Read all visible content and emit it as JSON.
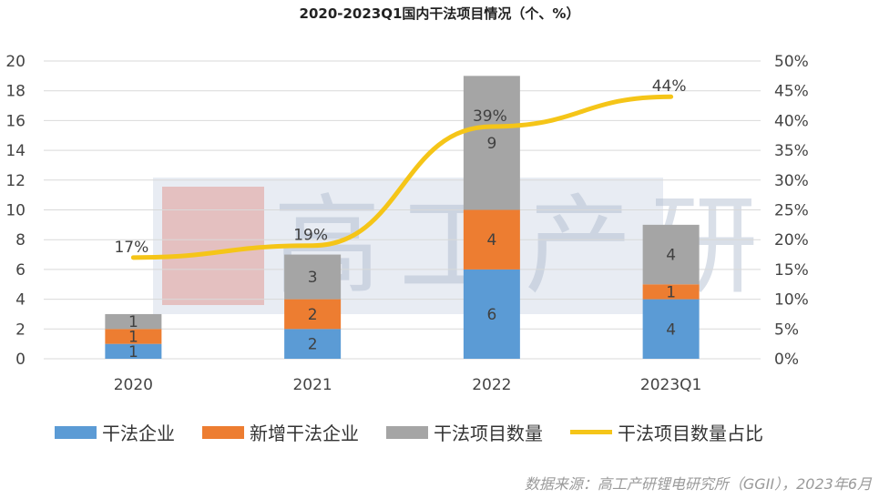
{
  "chart_data": {
    "type": "bar",
    "title": "2020-2023Q1国内干法项目情况（个、%）",
    "categories": [
      "2020",
      "2021",
      "2022",
      "2023Q1"
    ],
    "stacked": true,
    "series": [
      {
        "name": "干法企业",
        "values": [
          1,
          2,
          6,
          4
        ],
        "color": "#5b9bd5",
        "type": "bar"
      },
      {
        "name": "新增干法企业",
        "values": [
          1,
          2,
          4,
          1
        ],
        "color": "#ed7d31",
        "type": "bar"
      },
      {
        "name": "干法项目数量",
        "values": [
          1,
          3,
          9,
          4
        ],
        "color": "#a5a5a5",
        "type": "bar"
      },
      {
        "name": "干法项目数量占比",
        "values": [
          17,
          19,
          39,
          44
        ],
        "labels": [
          "17%",
          "19%",
          "39%",
          "44%"
        ],
        "color": "#f5c518",
        "type": "line",
        "axis": "right"
      }
    ],
    "ylim": [
      0,
      20
    ],
    "yticks": [
      "0",
      "2",
      "4",
      "6",
      "8",
      "10",
      "12",
      "14",
      "16",
      "18",
      "20"
    ],
    "y2lim": [
      0,
      50
    ],
    "y2ticks": [
      "0%",
      "5%",
      "10%",
      "15%",
      "20%",
      "25%",
      "30%",
      "35%",
      "40%",
      "45%",
      "50%"
    ],
    "grid": true,
    "legend_position": "bottom"
  },
  "watermark": {
    "text": "高工产研"
  },
  "source": "数据来源：高工产研锂电研究所（GGII），2023年6月"
}
